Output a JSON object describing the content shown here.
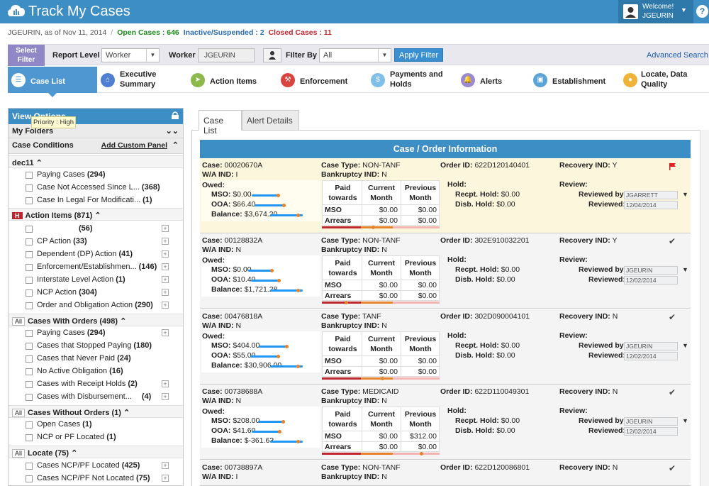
{
  "header": {
    "title": "Track My Cases",
    "welcome": "Welcome!",
    "user": "JGEURIN",
    "help": "?"
  },
  "status": {
    "user_date": "JGEURIN, as of Nov 11, 2014",
    "sep": "/",
    "open": "Open Cases : 646",
    "inactive": "Inactive/Suspended : 2",
    "closed": "Closed Cases : 11"
  },
  "filter": {
    "select_filter": "Select Filter",
    "report_level_label": "Report Level",
    "report_level_value": "Worker",
    "worker_label": "Worker",
    "worker_value": "JGEURIN",
    "filter_by_label": "Filter By",
    "filter_by_value": "All",
    "apply": "Apply Filter",
    "advanced": "Advanced Search"
  },
  "nav": {
    "tabs": [
      {
        "label": "Case List",
        "icon": "list-icon"
      },
      {
        "label": "Executive Summary",
        "icon": "home-icon"
      },
      {
        "label": "Action Items",
        "icon": "action-icon"
      },
      {
        "label": "Enforcement",
        "icon": "gavel-icon"
      },
      {
        "label": "Payments and Holds",
        "icon": "money-icon"
      },
      {
        "label": "Alerts",
        "icon": "bell-icon"
      },
      {
        "label": "Establishment",
        "icon": "briefcase-icon"
      },
      {
        "label": "Locate, Data Quality",
        "icon": "location-icon"
      }
    ]
  },
  "sidebar": {
    "view_options": "View Options",
    "my_folders": "My Folders",
    "case_conditions": "Case Conditions",
    "add_custom": "Add Custom Panel",
    "dec11": {
      "title": "dec11",
      "items": [
        {
          "label": "Paying Cases",
          "count": "(294)"
        },
        {
          "label": "Case Not Accessed Since L...",
          "count": "(368)"
        },
        {
          "label": "Case In Legal For Modificati...",
          "count": "(1)"
        }
      ]
    },
    "action": {
      "badge": "H",
      "title": "Action Items (871)",
      "tooltip": "Priority : High",
      "items": [
        {
          "label": "",
          "count": "(56)"
        },
        {
          "label": "CP Action",
          "count": "(33)"
        },
        {
          "label": "Dependent (DP) Action",
          "count": "(41)"
        },
        {
          "label": "Enforcement/Establishmen...",
          "count": "(146)"
        },
        {
          "label": "Interstate Level Action",
          "count": "(1)"
        },
        {
          "label": "NCP Action",
          "count": "(304)"
        },
        {
          "label": "Order and Obligation Action",
          "count": "(290)"
        }
      ]
    },
    "orders": {
      "all": "All",
      "title": "Cases With Orders (498)",
      "items": [
        {
          "label": "Paying Cases",
          "count": "(294)"
        },
        {
          "label": "Cases that Stopped Paying",
          "count": "(180)"
        },
        {
          "label": "Cases that Never Paid",
          "count": "(24)"
        },
        {
          "label": "No Active Obligation",
          "count": "(16)"
        },
        {
          "label": "Cases with Receipt Holds",
          "count": "(2)"
        },
        {
          "label": "Cases with Disbursement...",
          "count": "(4)"
        }
      ]
    },
    "noorders": {
      "all": "All",
      "title": "Cases Without Orders (1)",
      "items": [
        {
          "label": "Open Cases",
          "count": "(1)"
        },
        {
          "label": "NCP or PF Located",
          "count": "(1)"
        }
      ]
    },
    "locate": {
      "all": "All",
      "title": "Locate (75)",
      "items": [
        {
          "label": "Cases NCP/PF Located",
          "count": "(425)"
        },
        {
          "label": "Cases NCP/PF Not Located",
          "count": "(75)"
        }
      ]
    }
  },
  "main": {
    "tab_case_list": "Case List",
    "tab_alert_details": "Alert Details",
    "section_title": "Case / Order Information"
  },
  "labels": {
    "case": "Case:",
    "wa": "W/A IND:",
    "case_type": "Case Type:",
    "bankruptcy": "Bankruptcy IND:",
    "order_id": "Order ID:",
    "recovery": "Recovery IND:",
    "owed": "Owed:",
    "mso": "MSO:",
    "ooa": "OOA:",
    "balance": "Balance:",
    "paid_towards": "Paid towards",
    "current_month": "Current Month",
    "previous_month": "Previous Month",
    "row_mso": "MSO",
    "row_arrears": "Arrears",
    "hold": "Hold:",
    "recpt_hold": "Recpt. Hold:",
    "disb_hold": "Disb. Hold:",
    "review": "Review:",
    "reviewed_by": "Reviewed by:",
    "reviewed": "Reviewed:"
  },
  "cases": [
    {
      "case": "00020670A",
      "wa": "I",
      "type": "NON-TANF",
      "bankruptcy": "N",
      "order": "622D120140401",
      "recovery": "Y",
      "mso": "$0.00",
      "ooa": "$66.40",
      "balance": "$3,674.20",
      "cur_mso": "$0.00",
      "prev_mso": "$0.00",
      "cur_arr": "$0.00",
      "prev_arr": "$0.00",
      "recpt": "$0.00",
      "disb": "$0.00",
      "reviewer": "JGARRETT",
      "reviewed": "12/04/2014",
      "marker": "flag"
    },
    {
      "case": "00128832A",
      "wa": "N",
      "type": "NON-TANF",
      "bankruptcy": "N",
      "order": "302E910032201",
      "recovery": "Y",
      "mso": "$0.00",
      "ooa": "$10.40",
      "balance": "$1,721.28",
      "cur_mso": "$0.00",
      "prev_mso": "$0.00",
      "cur_arr": "$0.00",
      "prev_arr": "$0.00",
      "recpt": "$0.00",
      "disb": "$0.00",
      "reviewer": "JGEURIN",
      "reviewed": "12/02/2014",
      "marker": "check"
    },
    {
      "case": "00476818A",
      "wa": "N",
      "type": "TANF",
      "bankruptcy": "N",
      "order": "302D090004101",
      "recovery": "N",
      "mso": "$404.00",
      "ooa": "$55.00",
      "balance": "$30,906.00",
      "cur_mso": "$0.00",
      "prev_mso": "$0.00",
      "cur_arr": "$0.00",
      "prev_arr": "$0.00",
      "recpt": "$0.00",
      "disb": "$0.00",
      "reviewer": "JGEURIN",
      "reviewed": "12/02/2014",
      "marker": "check"
    },
    {
      "case": "00738688A",
      "wa": "N",
      "type": "MEDICAID",
      "bankruptcy": "N",
      "order": "622D110049301",
      "recovery": "N",
      "mso": "$208.00",
      "ooa": "$41.60",
      "balance": "$-361.63",
      "cur_mso": "$0.00",
      "prev_mso": "$312.00",
      "cur_arr": "$0.00",
      "prev_arr": "$0.00",
      "recpt": "$0.00",
      "disb": "$0.00",
      "reviewer": "JGEURIN",
      "reviewed": "12/02/2014",
      "marker": "check"
    },
    {
      "case": "00738897A",
      "wa": "I",
      "type": "NON-TANF",
      "bankruptcy": "N",
      "order": "622D120086801",
      "recovery": "N",
      "marker": "check"
    }
  ]
}
